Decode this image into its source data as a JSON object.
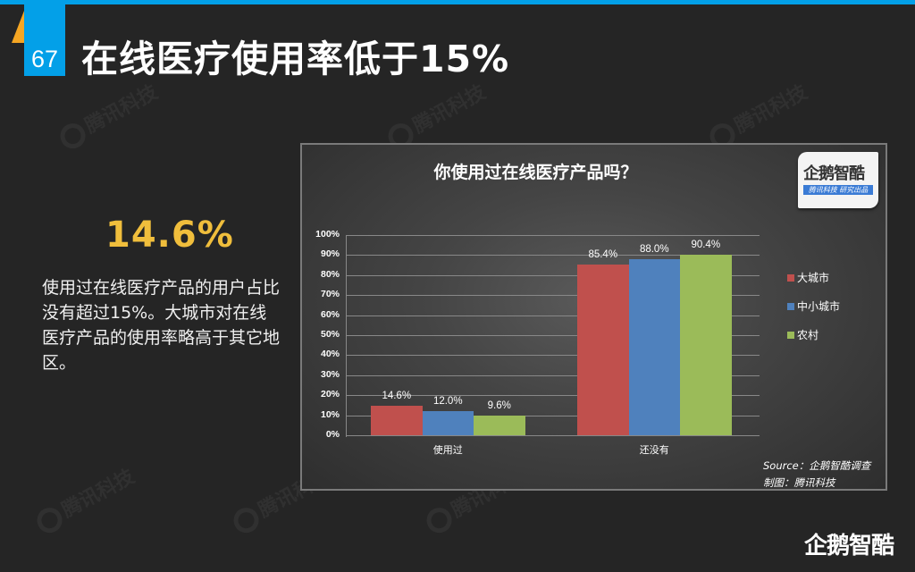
{
  "header": {
    "page_number": "67",
    "title": "在线医疗使用率低于15%",
    "accent_color": "#03a0e8",
    "triangle_color": "#f5a623"
  },
  "summary": {
    "stat": "14.6%",
    "stat_color": "#f0be3c",
    "description": "使用过在线医疗产品的用户占比没有超过15%。大城市对在线医疗产品的使用率略高于其它地区。"
  },
  "watermark": {
    "text": "腾讯科技"
  },
  "chart": {
    "logo": {
      "main": "企鹅智酷",
      "sub": "腾讯科技 研究出品"
    },
    "source_line1": "Source：企鹅智酷调查",
    "source_line2": "制图：腾讯科技"
  },
  "chart_data": {
    "type": "bar",
    "title": "你使用过在线医疗产品吗？",
    "categories": [
      "使用过",
      "还没有"
    ],
    "series": [
      {
        "name": "大城市",
        "color": "#c0504d",
        "values": [
          14.6,
          85.4
        ],
        "labels": [
          "14.6%",
          "85.4%"
        ]
      },
      {
        "name": "中小城市",
        "color": "#4f81bd",
        "values": [
          12.0,
          88.0
        ],
        "labels": [
          "12.0%",
          "88.0%"
        ]
      },
      {
        "name": "农村",
        "color": "#9bbb59",
        "values": [
          9.6,
          90.4
        ],
        "labels": [
          "9.6%",
          "90.4%"
        ]
      }
    ],
    "y_ticks": [
      "100%",
      "90%",
      "80%",
      "70%",
      "60%",
      "50%",
      "40%",
      "30%",
      "20%",
      "10%",
      "0%"
    ],
    "xlabel": "",
    "ylabel": "",
    "ylim": [
      0,
      100
    ],
    "grid": true,
    "legend_position": "right"
  },
  "footer": {
    "logo": "企鹅智酷"
  }
}
